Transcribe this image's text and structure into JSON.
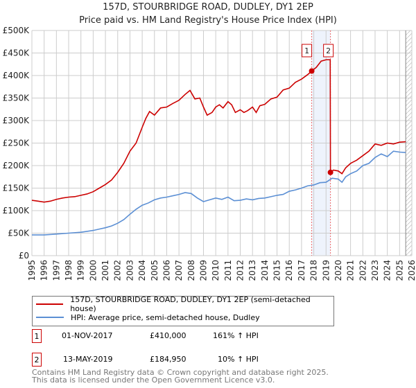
{
  "chart_data": {
    "type": "line",
    "title": "157D, STOURBRIDGE ROAD, DUDLEY, DY1 2EP",
    "subtitle": "Price paid vs. HM Land Registry's House Price Index (HPI)",
    "xlim": [
      1995,
      2026
    ],
    "ylim": [
      0,
      500000
    ],
    "y_ticks": [
      {
        "v": 0,
        "label": "£0"
      },
      {
        "v": 50000,
        "label": "£50K"
      },
      {
        "v": 100000,
        "label": "£100K"
      },
      {
        "v": 150000,
        "label": "£150K"
      },
      {
        "v": 200000,
        "label": "£200K"
      },
      {
        "v": 250000,
        "label": "£250K"
      },
      {
        "v": 300000,
        "label": "£300K"
      },
      {
        "v": 350000,
        "label": "£350K"
      },
      {
        "v": 400000,
        "label": "£400K"
      },
      {
        "v": 450000,
        "label": "£450K"
      },
      {
        "v": 500000,
        "label": "£500K"
      }
    ],
    "x_ticks": [
      "1995",
      "1996",
      "1997",
      "1998",
      "1999",
      "2000",
      "2001",
      "2002",
      "2003",
      "2004",
      "2005",
      "2006",
      "2007",
      "2008",
      "2009",
      "2010",
      "2011",
      "2012",
      "2013",
      "2014",
      "2015",
      "2016",
      "2017",
      "2018",
      "2019",
      "2020",
      "2021",
      "2022",
      "2023",
      "2024",
      "2025",
      "2026"
    ],
    "series": [
      {
        "name": "157D, STOURBRIDGE ROAD, DUDLEY, DY1 2EP (semi-detached house)",
        "color": "#cc0000",
        "x": [
          1995,
          1995.5,
          1996,
          1996.5,
          1997,
          1997.5,
          1998,
          1998.5,
          1999,
          1999.5,
          2000,
          2000.5,
          2001,
          2001.5,
          2002,
          2002.5,
          2003,
          2003.5,
          2004,
          2004.3,
          2004.6,
          2005,
          2005.5,
          2006,
          2006.5,
          2007,
          2007.5,
          2007.9,
          2008.3,
          2008.7,
          2009,
          2009.3,
          2009.7,
          2010,
          2010.3,
          2010.6,
          2011,
          2011.3,
          2011.6,
          2012,
          2012.3,
          2012.6,
          2013,
          2013.3,
          2013.6,
          2014,
          2014.5,
          2015,
          2015.5,
          2016,
          2016.5,
          2017,
          2017.5,
          2017.83,
          2018.2,
          2018.6,
          2019.0,
          2019.34,
          2019.36,
          2019.6,
          2020,
          2020.3,
          2020.6,
          2021,
          2021.5,
          2022,
          2022.5,
          2023,
          2023.5,
          2024,
          2024.5,
          2025,
          2025.5
        ],
        "y": [
          123000,
          121000,
          119000,
          121000,
          125000,
          128000,
          130000,
          131000,
          134000,
          137000,
          142000,
          150000,
          158000,
          168000,
          185000,
          205000,
          232000,
          250000,
          285000,
          305000,
          320000,
          312000,
          328000,
          330000,
          338000,
          345000,
          358000,
          367000,
          348000,
          350000,
          330000,
          312000,
          318000,
          330000,
          335000,
          328000,
          342000,
          335000,
          318000,
          324000,
          318000,
          322000,
          330000,
          318000,
          333000,
          336000,
          348000,
          352000,
          368000,
          372000,
          385000,
          392000,
          402000,
          410000,
          418000,
          432000,
          435000,
          435000,
          184950,
          190000,
          188000,
          182000,
          195000,
          205000,
          212000,
          222000,
          232000,
          248000,
          245000,
          250000,
          248000,
          252000,
          253000
        ]
      },
      {
        "name": "HPI: Average price, semi-detached house, Dudley",
        "color": "#5b8fd4",
        "x": [
          1995,
          1996,
          1997,
          1998,
          1999,
          2000,
          2000.5,
          2001,
          2001.5,
          2002,
          2002.5,
          2003,
          2003.5,
          2004,
          2004.5,
          2005,
          2005.5,
          2006,
          2006.5,
          2007,
          2007.5,
          2008,
          2008.5,
          2009,
          2009.5,
          2010,
          2010.5,
          2011,
          2011.5,
          2012,
          2012.5,
          2013,
          2013.5,
          2014,
          2014.5,
          2015,
          2015.5,
          2016,
          2016.5,
          2017,
          2017.5,
          2018,
          2018.5,
          2019,
          2019.5,
          2020,
          2020.3,
          2020.6,
          2021,
          2021.5,
          2022,
          2022.5,
          2023,
          2023.5,
          2024,
          2024.5,
          2025,
          2025.5
        ],
        "y": [
          46000,
          46000,
          48000,
          50000,
          52000,
          56000,
          59000,
          62000,
          66000,
          72000,
          80000,
          92000,
          103000,
          112000,
          117000,
          124000,
          128000,
          130000,
          133000,
          136000,
          140000,
          138000,
          128000,
          120000,
          124000,
          128000,
          125000,
          130000,
          122000,
          123000,
          126000,
          124000,
          127000,
          128000,
          131000,
          134000,
          136000,
          143000,
          146000,
          150000,
          155000,
          157000,
          162000,
          163000,
          172000,
          170000,
          163000,
          175000,
          182000,
          188000,
          200000,
          205000,
          218000,
          226000,
          220000,
          232000,
          230000,
          229000
        ]
      }
    ],
    "shaded_range": [
      2017.83,
      2019.36
    ],
    "forecast_from": 2025.5,
    "markers": [
      {
        "label": "1",
        "x": 2017.83,
        "y": 410000
      },
      {
        "label": "2",
        "x": 2019.36,
        "y": 184950
      }
    ]
  },
  "legend": {
    "items": [
      "157D, STOURBRIDGE ROAD, DUDLEY, DY1 2EP (semi-detached house)",
      "HPI: Average price, semi-detached house, Dudley"
    ]
  },
  "transactions": [
    {
      "num": "1",
      "date": "01-NOV-2017",
      "price": "£410,000",
      "hpi": "161% ↑ HPI"
    },
    {
      "num": "2",
      "date": "13-MAY-2019",
      "price": "£184,950",
      "hpi": "10% ↑ HPI"
    }
  ],
  "footer": {
    "line1": "Contains HM Land Registry data © Crown copyright and database right 2025.",
    "line2": "This data is licensed under the Open Government Licence v3.0."
  }
}
